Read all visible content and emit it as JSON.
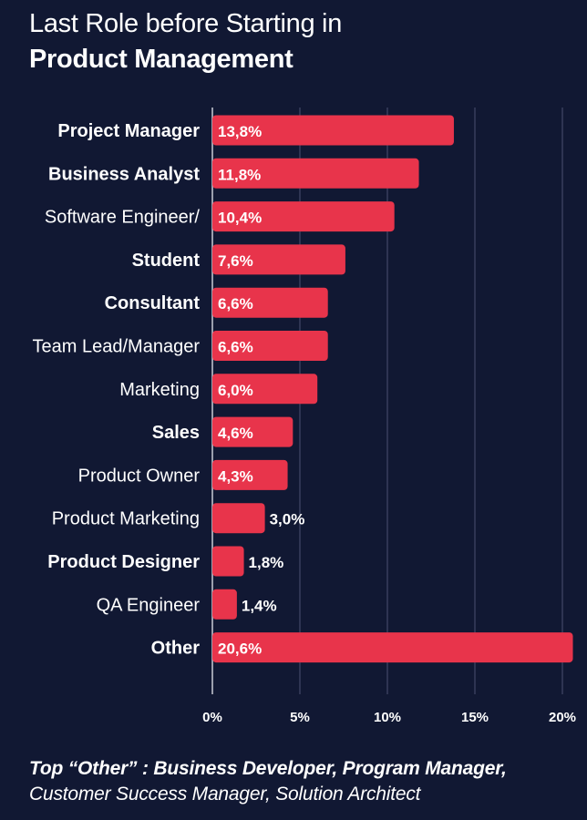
{
  "title": {
    "line1": "Last Role before Starting in",
    "line2": "Product Management"
  },
  "footnote": {
    "line1": "Top “Other” : Business Developer, Program Manager,",
    "line2": "Customer Success Manager, Solution Architect"
  },
  "colors": {
    "background": "#111833",
    "bar": "#e8344b",
    "gridline": "#4a5070",
    "text": "#ffffff"
  },
  "chart_data": {
    "type": "bar",
    "orientation": "horizontal",
    "categories": [
      "Project Manager",
      "Business Analyst",
      "Software Engineer/",
      "Student",
      "Consultant",
      "Team Lead/Manager",
      "Marketing",
      "Sales",
      "Product Owner",
      "Product Marketing",
      "Product Designer",
      "QA Engineer",
      "Other"
    ],
    "category_bold": [
      true,
      true,
      false,
      true,
      true,
      false,
      false,
      true,
      false,
      false,
      true,
      false,
      true
    ],
    "values": [
      13.8,
      11.8,
      10.4,
      7.6,
      6.6,
      6.6,
      6.0,
      4.6,
      4.3,
      3.0,
      1.8,
      1.4,
      20.6
    ],
    "data_labels": [
      "13,8%",
      "11,8%",
      "10,4%",
      "7,6%",
      "6,6%",
      "6,6%",
      "6,0%",
      "4,6%",
      "4,3%",
      "3,0%",
      "1,8%",
      "1,4%",
      "20,6%"
    ],
    "xlim": [
      0,
      20
    ],
    "xticks": [
      0,
      5,
      10,
      15,
      20
    ],
    "xtick_labels": [
      "0%",
      "5%",
      "10%",
      "15%",
      "20%"
    ],
    "grid": true
  }
}
